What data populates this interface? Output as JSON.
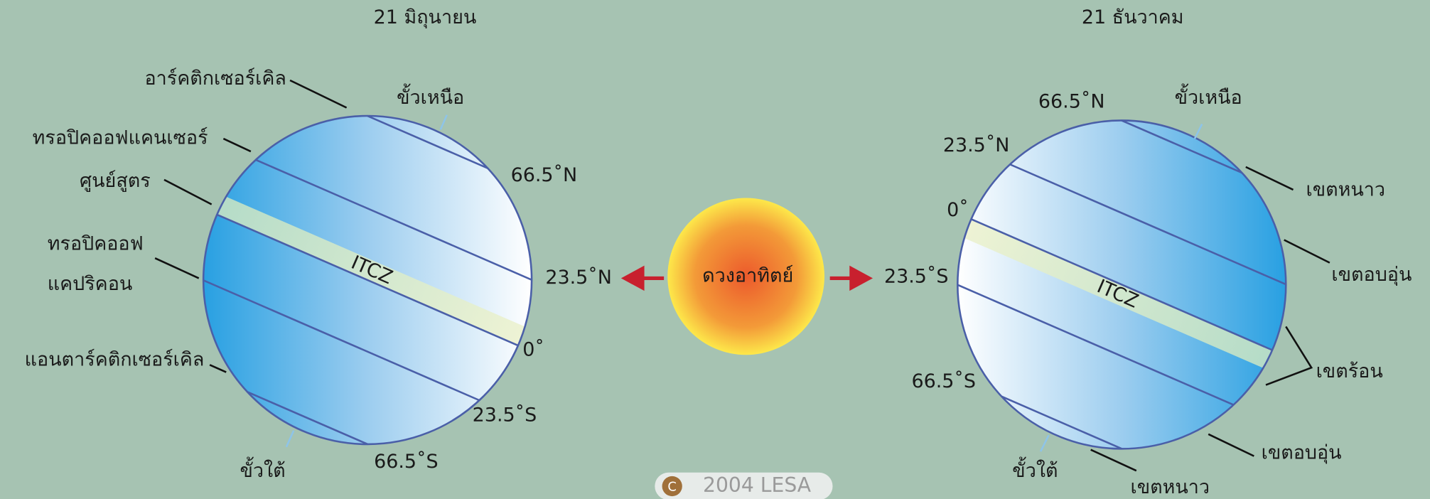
{
  "june": {
    "title": "21 มิถุนายน",
    "labels": [
      "อาร์คติกเซอร์เคิล",
      "ทรอปิคออฟแคนเซอร์",
      "ศูนย์สูตร",
      "ทรอปิคออฟ",
      "แคปริคอน",
      "แอนตาร์คติกเซอร์เคิล",
      "ขั้วใต้",
      "ขั้วเหนือ"
    ],
    "latitudes": [
      "66.5˚N",
      "23.5˚N",
      "0˚",
      "23.5˚S",
      "66.5˚S"
    ],
    "band": "ITCZ"
  },
  "december": {
    "title": "21 ธันวาคม",
    "labels": [
      "ขั้วเหนือ",
      "ขั้วใต้"
    ],
    "latitudes": [
      "66.5˚N",
      "23.5˚N",
      "0˚",
      "23.5˚S",
      "66.5˚S"
    ],
    "zones": [
      "เขตหนาว",
      "เขตอบอุ่น",
      "เขตร้อน",
      "เขตอบอุ่น",
      "เขตหนาว"
    ],
    "band": "ITCZ"
  },
  "sun": "ดวงอาทิตย์",
  "copyright": {
    "symbol": "C",
    "text": "2004 LESA"
  }
}
